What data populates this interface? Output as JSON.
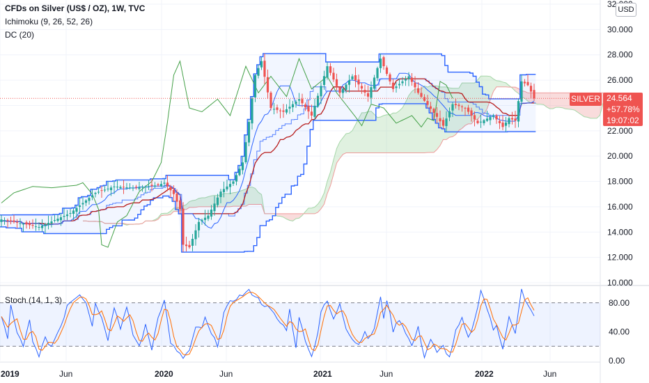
{
  "legend": {
    "title": "CFDs on Silver (US$ / OZ), 1W, TVC",
    "ichimoku": "Ichimoku (9, 26, 52, 26)",
    "dc": "DC (20)",
    "stoch": "Stoch (14, 1, 3)"
  },
  "currency_button": "USD",
  "symbol_badge": "SILVER",
  "price_box": {
    "price": "24.564",
    "change": "+57.78%",
    "countdown": "19:07:02"
  },
  "colors": {
    "up": "#26a69a",
    "down": "#ef5350",
    "donchian": "#2962ff",
    "tenkan": "#2962ff",
    "kijun": "#b71c1c",
    "chikou": "#43a047",
    "cloud_bull": "#a5d6a7",
    "cloud_bear": "#ef9a9a",
    "stoch_k": "#2962ff",
    "stoch_d": "#ff6d00"
  },
  "chart_data": [
    {
      "type": "candlestick",
      "price_axis": {
        "min": 10,
        "max": 32,
        "ticks": [
          "10.000",
          "12.000",
          "14.000",
          "16.000",
          "18.000",
          "20.000",
          "22.000",
          "24.000",
          "26.000",
          "28.000",
          "30.000",
          "32.000"
        ]
      },
      "time_axis": {
        "labels": [
          "2019",
          "Jun",
          "2020",
          "Jun",
          "2021",
          "Jun",
          "2022",
          "Jun"
        ],
        "bold": [
          "2019",
          "2020",
          "2021",
          "2022"
        ]
      },
      "last_price": 24.564,
      "anchors": [
        [
          0,
          15.0
        ],
        [
          12,
          14.4
        ],
        [
          22,
          15.5
        ],
        [
          30,
          17.1
        ],
        [
          36,
          17.6
        ],
        [
          42,
          17.5
        ],
        [
          50,
          17.7
        ],
        [
          52,
          17.9
        ],
        [
          55,
          17.0
        ],
        [
          57,
          15.8
        ],
        [
          58,
          13.0
        ],
        [
          60,
          12.8
        ],
        [
          63,
          14.8
        ],
        [
          66,
          15.3
        ],
        [
          70,
          17.2
        ],
        [
          74,
          18.0
        ],
        [
          77,
          19.5
        ],
        [
          79,
          22.7
        ],
        [
          81,
          26.4
        ],
        [
          83,
          27.5
        ],
        [
          86,
          23.8
        ],
        [
          90,
          23.5
        ],
        [
          95,
          24.5
        ],
        [
          99,
          23.2
        ],
        [
          104,
          27.1
        ],
        [
          108,
          25.0
        ],
        [
          112,
          26.3
        ],
        [
          117,
          24.7
        ],
        [
          121,
          27.7
        ],
        [
          125,
          25.3
        ],
        [
          130,
          26.3
        ],
        [
          133,
          25.0
        ],
        [
          139,
          23.1
        ],
        [
          141,
          22.4
        ],
        [
          144,
          24.1
        ],
        [
          148,
          23.8
        ],
        [
          152,
          22.6
        ],
        [
          157,
          23.2
        ],
        [
          160,
          22.3
        ],
        [
          162,
          23.0
        ],
        [
          164,
          22.8
        ],
        [
          166,
          25.9
        ],
        [
          168,
          25.6
        ],
        [
          170,
          24.6
        ]
      ]
    },
    {
      "type": "line",
      "name": "Stoch (14, 1, 3)",
      "y_axis": {
        "min": 0,
        "max": 100,
        "ticks": [
          "0.00",
          "40.00",
          "80.00"
        ]
      },
      "bands": [
        20,
        80
      ],
      "anchors": [
        [
          0,
          62
        ],
        [
          2,
          30
        ],
        [
          3,
          75
        ],
        [
          5,
          40
        ],
        [
          7,
          18
        ],
        [
          9,
          55
        ],
        [
          10,
          25
        ],
        [
          12,
          8
        ],
        [
          14,
          30
        ],
        [
          16,
          20
        ],
        [
          18,
          40
        ],
        [
          20,
          60
        ],
        [
          21,
          78
        ],
        [
          23,
          86
        ],
        [
          25,
          93
        ],
        [
          27,
          80
        ],
        [
          29,
          50
        ],
        [
          30,
          78
        ],
        [
          32,
          62
        ],
        [
          34,
          30
        ],
        [
          36,
          74
        ],
        [
          38,
          46
        ],
        [
          40,
          72
        ],
        [
          42,
          36
        ],
        [
          44,
          20
        ],
        [
          46,
          48
        ],
        [
          48,
          16
        ],
        [
          50,
          62
        ],
        [
          52,
          83
        ],
        [
          54,
          26
        ],
        [
          56,
          12
        ],
        [
          58,
          4
        ],
        [
          60,
          14
        ],
        [
          62,
          44
        ],
        [
          64,
          46
        ],
        [
          65,
          58
        ],
        [
          67,
          36
        ],
        [
          69,
          22
        ],
        [
          71,
          66
        ],
        [
          73,
          80
        ],
        [
          75,
          87
        ],
        [
          77,
          91
        ],
        [
          79,
          96
        ],
        [
          81,
          90
        ],
        [
          83,
          80
        ],
        [
          85,
          74
        ],
        [
          87,
          64
        ],
        [
          89,
          52
        ],
        [
          91,
          44
        ],
        [
          92,
          70
        ],
        [
          94,
          20
        ],
        [
          95,
          58
        ],
        [
          97,
          30
        ],
        [
          99,
          5
        ],
        [
          101,
          40
        ],
        [
          102,
          68
        ],
        [
          104,
          82
        ],
        [
          106,
          56
        ],
        [
          108,
          80
        ],
        [
          110,
          46
        ],
        [
          112,
          30
        ],
        [
          114,
          22
        ],
        [
          116,
          42
        ],
        [
          117,
          28
        ],
        [
          119,
          45
        ],
        [
          121,
          86
        ],
        [
          122,
          60
        ],
        [
          123,
          85
        ],
        [
          125,
          42
        ],
        [
          127,
          58
        ],
        [
          129,
          40
        ],
        [
          131,
          20
        ],
        [
          133,
          45
        ],
        [
          135,
          6
        ],
        [
          137,
          30
        ],
        [
          139,
          10
        ],
        [
          141,
          20
        ],
        [
          143,
          4
        ],
        [
          145,
          40
        ],
        [
          147,
          57
        ],
        [
          149,
          30
        ],
        [
          151,
          55
        ],
        [
          153,
          98
        ],
        [
          155,
          72
        ],
        [
          157,
          42
        ],
        [
          158,
          50
        ],
        [
          160,
          18
        ],
        [
          162,
          60
        ],
        [
          164,
          36
        ],
        [
          166,
          98
        ],
        [
          168,
          75
        ],
        [
          169,
          70
        ],
        [
          170,
          60
        ]
      ]
    }
  ]
}
